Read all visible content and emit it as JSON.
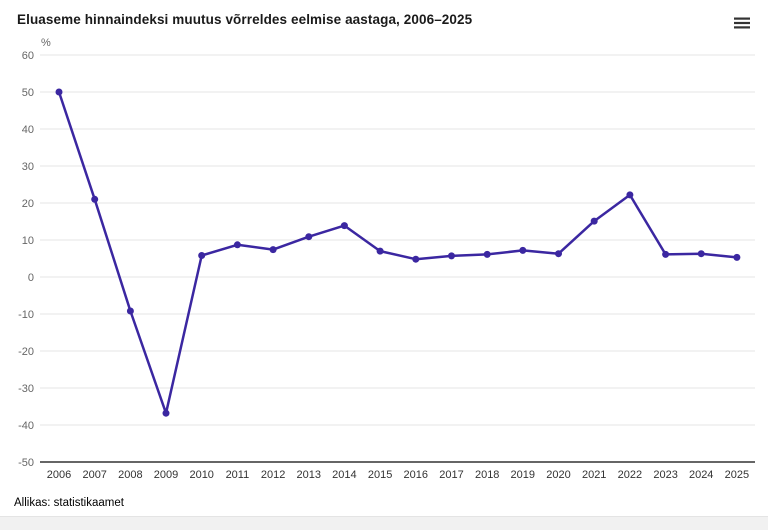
{
  "header": {
    "title": "Eluaseme hinnaindeksi muutus võrreldes eelmise aastaga, 2006–2025",
    "menu_icon": "hamburger-menu"
  },
  "chart_data": {
    "type": "line",
    "title": "Eluaseme hinnaindeksi muutus võrreldes eelmise aastaga, 2006–2025",
    "xlabel": "",
    "ylabel": "%",
    "categories": [
      "2006",
      "2007",
      "2008",
      "2009",
      "2010",
      "2011",
      "2012",
      "2013",
      "2014",
      "2015",
      "2016",
      "2017",
      "2018",
      "2019",
      "2020",
      "2021",
      "2022",
      "2023",
      "2024",
      "2025"
    ],
    "values": [
      50.0,
      21.0,
      -9.2,
      -36.8,
      5.8,
      8.7,
      7.4,
      10.9,
      13.9,
      7.0,
      4.8,
      5.7,
      6.1,
      7.2,
      6.3,
      15.1,
      22.2,
      6.1,
      6.3,
      5.3
    ],
    "ylim": [
      -50,
      60
    ],
    "y_ticks": [
      60,
      50,
      40,
      30,
      20,
      10,
      0,
      -10,
      -20,
      -30,
      -40,
      -50
    ],
    "grid": true,
    "legend": "none",
    "colors": {
      "line": "#3b27a1",
      "grid": "#e6e6e6",
      "axis_line": "#666666",
      "tick_labels": "#666666",
      "category_labels": "#333333"
    }
  },
  "footer": {
    "source": "Allikas: statistikaamet"
  }
}
